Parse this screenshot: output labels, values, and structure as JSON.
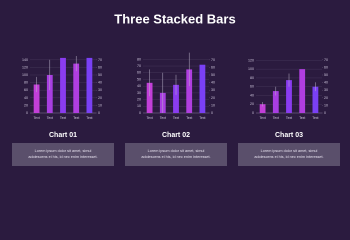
{
  "title": "Three Stacked Bars",
  "chart_data": [
    {
      "type": "bar",
      "title": "Chart 01",
      "caption": [
        "Lorem ipsum dolor sit amet, simul",
        "adolescens ei his, id nec enim interesset."
      ],
      "categories": [
        "Text",
        "Text",
        "Text",
        "Text",
        "Text"
      ],
      "values": [
        75,
        100,
        145,
        130,
        145
      ],
      "errors": [
        20,
        40,
        0,
        20,
        0
      ],
      "colors": [
        "#c23fd8",
        "#a83ee2",
        "#8a3cf0",
        "#b03ee0",
        "#7a40f5"
      ],
      "ylim": [
        0,
        150
      ],
      "yticks": [
        0,
        20,
        40,
        60,
        80,
        100,
        120,
        140
      ],
      "y2lim": [
        0,
        75
      ],
      "y2ticks": [
        0,
        10,
        20,
        30,
        40,
        50,
        60,
        70
      ],
      "grid": true
    },
    {
      "type": "bar",
      "title": "Chart 02",
      "caption": [
        "Lorem ipsum dolor sit amet, simul",
        "adolescens ei his, id nec enim interesset."
      ],
      "categories": [
        "Text",
        "Text",
        "Text",
        "Text",
        "Text"
      ],
      "values": [
        45,
        30,
        42,
        65,
        72
      ],
      "errors": [
        20,
        30,
        15,
        25,
        0
      ],
      "colors": [
        "#c23fd8",
        "#a83ee2",
        "#8a3cf0",
        "#b03ee0",
        "#7a40f5"
      ],
      "ylim": [
        0,
        85
      ],
      "yticks": [
        0,
        10,
        20,
        30,
        40,
        50,
        60,
        70,
        80
      ],
      "y2lim": [
        0,
        75
      ],
      "y2ticks": [
        0,
        10,
        20,
        30,
        40,
        50,
        60,
        70
      ],
      "grid": true
    },
    {
      "type": "bar",
      "title": "Chart 03",
      "caption": [
        "Lorem ipsum dolor sit amet, simul",
        "adolescens ei his, id nec enim interesset."
      ],
      "categories": [
        "Text",
        "Text",
        "Text",
        "Text",
        "Text"
      ],
      "values": [
        20,
        50,
        75,
        100,
        60
      ],
      "errors": [
        5,
        10,
        15,
        0,
        10
      ],
      "colors": [
        "#c23fd8",
        "#a83ee2",
        "#8a3cf0",
        "#b03ee0",
        "#7a40f5"
      ],
      "ylim": [
        0,
        130
      ],
      "yticks": [
        0,
        20,
        40,
        60,
        80,
        100,
        120
      ],
      "y2lim": [
        0,
        75
      ],
      "y2ticks": [
        0,
        10,
        20,
        30,
        40,
        50,
        60,
        70
      ],
      "grid": true
    }
  ]
}
